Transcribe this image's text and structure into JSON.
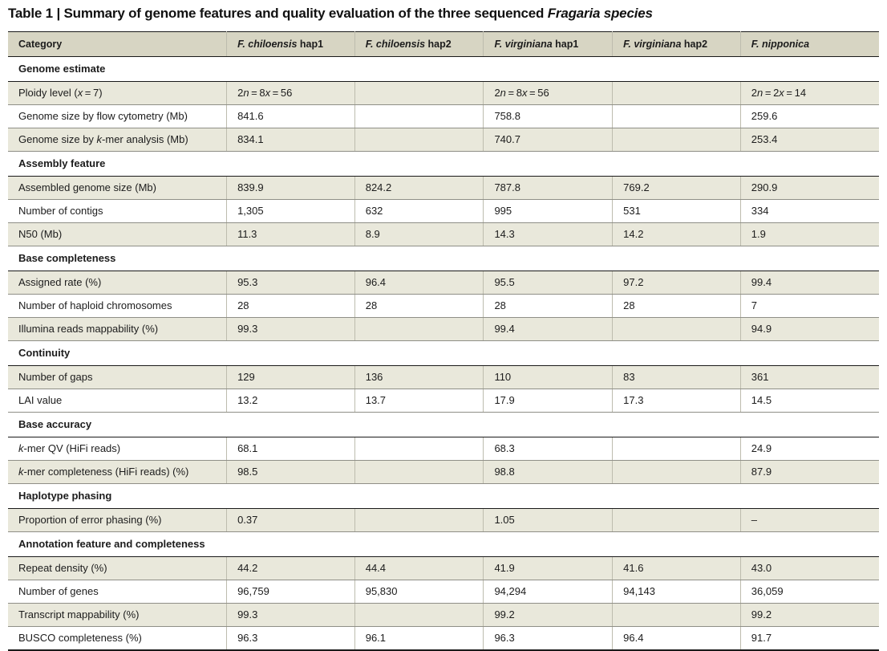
{
  "title": "Table 1 | Summary of genome features and quality evaluation of the three sequenced *Fragaria species*",
  "colors": {
    "header_bg": "#d7d5c3",
    "stripe_bg": "#e9e8db",
    "rule_dark": "#1a1a1a",
    "rule_light": "#8f8f87",
    "rule_vert": "#bdbcae",
    "text": "#1c1c1c"
  },
  "table": {
    "columns": [
      "Category",
      "*F. chiloensis* hap1",
      "*F. chiloensis* hap2",
      "*F. virginiana* hap1",
      "*F. virginiana* hap2",
      "*F. nipponica*"
    ],
    "column_widths_pct": [
      25.1,
      14.7,
      14.8,
      14.8,
      14.7,
      15.9
    ],
    "sections": [
      {
        "header": "Genome estimate",
        "rows": [
          {
            "label": "Ploidy level (*x* = 7)",
            "shaded": true,
            "values": [
              "2*n* = 8*x* = 56",
              "",
              "2*n* = 8*x* = 56",
              "",
              "2*n* = 2*x* = 14"
            ]
          },
          {
            "label": "Genome size by flow cytometry (Mb)",
            "shaded": false,
            "values": [
              "841.6",
              "",
              "758.8",
              "",
              "259.6"
            ]
          },
          {
            "label": "Genome size by *k*-mer analysis (Mb)",
            "shaded": true,
            "values": [
              "834.1",
              "",
              "740.7",
              "",
              "253.4"
            ]
          }
        ]
      },
      {
        "header": "Assembly feature",
        "rows": [
          {
            "label": "Assembled genome size (Mb)",
            "shaded": true,
            "values": [
              "839.9",
              "824.2",
              "787.8",
              "769.2",
              "290.9"
            ]
          },
          {
            "label": "Number of contigs",
            "shaded": false,
            "values": [
              "1,305",
              "632",
              "995",
              "531",
              "334"
            ]
          },
          {
            "label": "N50 (Mb)",
            "shaded": true,
            "values": [
              "11.3",
              "8.9",
              "14.3",
              "14.2",
              "1.9"
            ]
          }
        ]
      },
      {
        "header": "Base completeness",
        "rows": [
          {
            "label": "Assigned rate (%)",
            "shaded": true,
            "values": [
              "95.3",
              "96.4",
              "95.5",
              "97.2",
              "99.4"
            ]
          },
          {
            "label": "Number of haploid chromosomes",
            "shaded": false,
            "values": [
              "28",
              "28",
              "28",
              "28",
              "7"
            ]
          },
          {
            "label": "Illumina reads mappability (%)",
            "shaded": true,
            "values": [
              "99.3",
              "",
              "99.4",
              "",
              "94.9"
            ]
          }
        ]
      },
      {
        "header": "Continuity",
        "rows": [
          {
            "label": "Number of gaps",
            "shaded": true,
            "values": [
              "129",
              "136",
              "110",
              "83",
              "361"
            ]
          },
          {
            "label": "LAI value",
            "shaded": false,
            "values": [
              "13.2",
              "13.7",
              "17.9",
              "17.3",
              "14.5"
            ]
          }
        ]
      },
      {
        "header": "Base accuracy",
        "rows": [
          {
            "label": "*k*-mer QV (HiFi reads)",
            "shaded": false,
            "values": [
              "68.1",
              "",
              "68.3",
              "",
              "24.9"
            ]
          },
          {
            "label": "*k*-mer completeness (HiFi reads) (%)",
            "shaded": true,
            "values": [
              "98.5",
              "",
              "98.8",
              "",
              "87.9"
            ]
          }
        ]
      },
      {
        "header": "Haplotype phasing",
        "rows": [
          {
            "label": "Proportion of error phasing (%)",
            "shaded": true,
            "values": [
              "0.37",
              "",
              "1.05",
              "",
              "–"
            ]
          }
        ]
      },
      {
        "header": "Annotation feature and completeness",
        "rows": [
          {
            "label": "Repeat density (%)",
            "shaded": true,
            "values": [
              "44.2",
              "44.4",
              "41.9",
              "41.6",
              "43.0"
            ]
          },
          {
            "label": "Number of genes",
            "shaded": false,
            "values": [
              "96,759",
              "95,830",
              "94,294",
              "94,143",
              "36,059"
            ]
          },
          {
            "label": "Transcript mappability (%)",
            "shaded": true,
            "values": [
              "99.3",
              "",
              "99.2",
              "",
              "99.2"
            ]
          },
          {
            "label": "BUSCO completeness (%)",
            "shaded": false,
            "values": [
              "96.3",
              "96.1",
              "96.3",
              "96.4",
              "91.7"
            ]
          }
        ]
      }
    ]
  }
}
